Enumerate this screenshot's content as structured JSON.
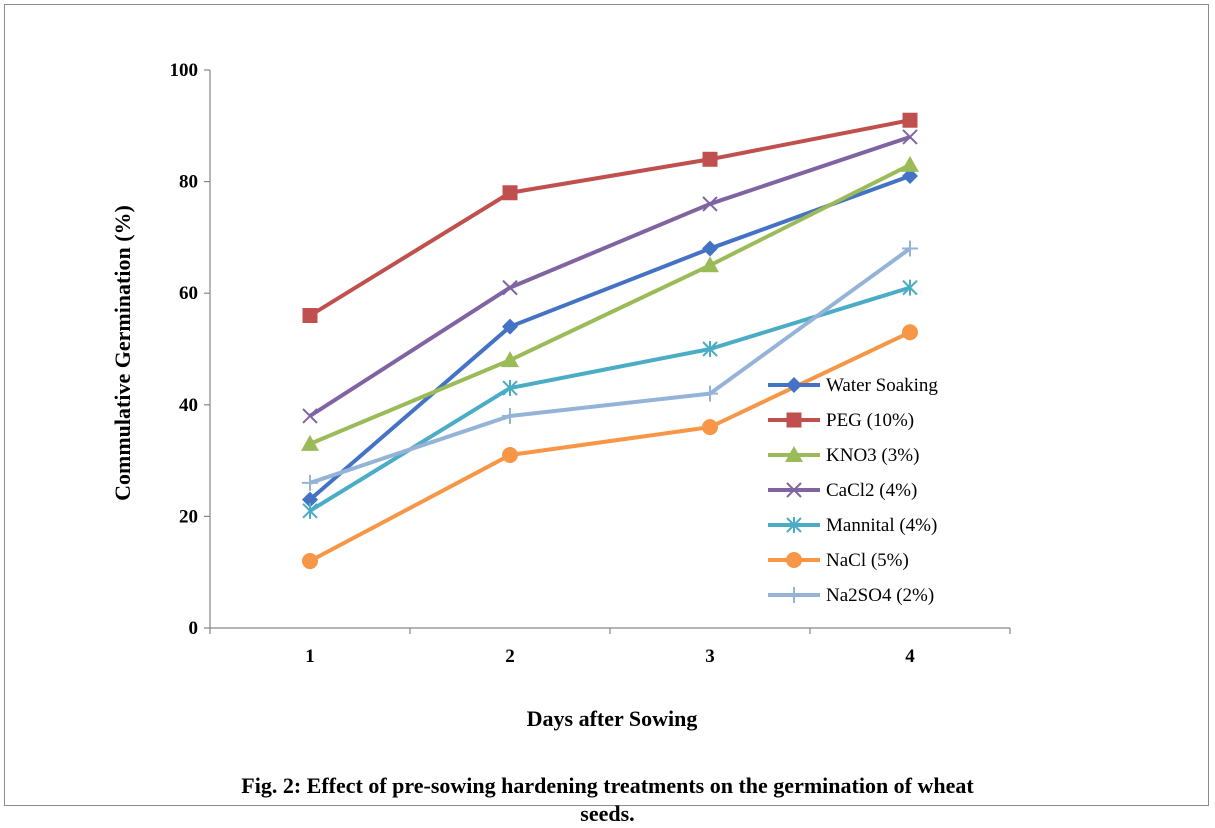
{
  "chart_data": {
    "type": "line",
    "categories": [
      "1",
      "2",
      "3",
      "4"
    ],
    "xlabel": "Days after Sowing",
    "ylabel": "Commulative Germination (%)",
    "ylim": [
      0,
      100
    ],
    "yticks": [
      0,
      20,
      40,
      60,
      80,
      100
    ],
    "grid": false,
    "legend_position": "right-inside",
    "caption_line1": "Fig. 2: Effect of pre-sowing hardening treatments on the germination of wheat",
    "caption_line2": "seeds.",
    "series": [
      {
        "name": "Water Soaking",
        "values": [
          23,
          54,
          68,
          81
        ],
        "color": "#4472C4",
        "marker": "diamond"
      },
      {
        "name": "PEG (10%)",
        "values": [
          56,
          78,
          84,
          91
        ],
        "color": "#C0504D",
        "marker": "square"
      },
      {
        "name": "KNO3 (3%)",
        "values": [
          33,
          48,
          65,
          83
        ],
        "color": "#9BBB59",
        "marker": "triangle"
      },
      {
        "name": "CaCl2   (4%)",
        "values": [
          38,
          61,
          76,
          88
        ],
        "color": "#8064A2",
        "marker": "x"
      },
      {
        "name": "Mannital (4%)",
        "values": [
          21,
          43,
          50,
          61
        ],
        "color": "#4BACC6",
        "marker": "star"
      },
      {
        "name": "NaCl  (5%)",
        "values": [
          12,
          31,
          36,
          53
        ],
        "color": "#F79646",
        "marker": "circle"
      },
      {
        "name": "Na2SO4 (2%)",
        "values": [
          26,
          38,
          42,
          68
        ],
        "color": "#95B3D7",
        "marker": "plus"
      }
    ]
  }
}
